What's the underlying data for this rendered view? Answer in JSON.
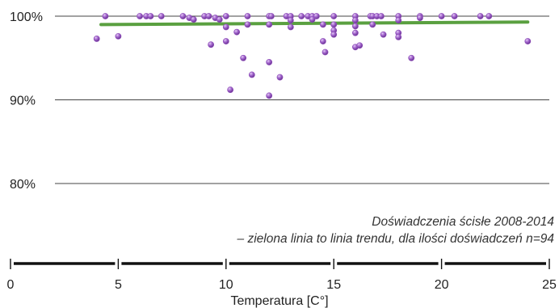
{
  "chart_data": {
    "type": "scatter",
    "xlabel": "Temperatura [C°]",
    "ylabel": "",
    "xlim": [
      0,
      25
    ],
    "ylim": [
      78,
      101.5
    ],
    "x_ticks": [
      0,
      5,
      10,
      15,
      20,
      25
    ],
    "y_ticks": [
      {
        "value": 100,
        "label": "100%"
      },
      {
        "value": 90,
        "label": "90%"
      },
      {
        "value": 80,
        "label": "80%"
      }
    ],
    "grid": "horizontal",
    "annotations": [
      "Doświadczenia ścisłe 2008-2014",
      "– zielona linia to linia trendu, dla ilości doświadczeń n=94"
    ],
    "series": [
      {
        "type": "scatter",
        "color": "#8e4fb8",
        "points": [
          {
            "x": 4.0,
            "y": 97.3
          },
          {
            "x": 4.4,
            "y": 100
          },
          {
            "x": 5.0,
            "y": 97.6
          },
          {
            "x": 6.0,
            "y": 100
          },
          {
            "x": 6.3,
            "y": 100
          },
          {
            "x": 6.5,
            "y": 100
          },
          {
            "x": 7.0,
            "y": 100
          },
          {
            "x": 8.0,
            "y": 100
          },
          {
            "x": 8.3,
            "y": 99.8
          },
          {
            "x": 8.5,
            "y": 99.6
          },
          {
            "x": 9.0,
            "y": 100
          },
          {
            "x": 9.2,
            "y": 100
          },
          {
            "x": 9.3,
            "y": 96.6
          },
          {
            "x": 9.5,
            "y": 99.8
          },
          {
            "x": 9.7,
            "y": 99.6
          },
          {
            "x": 10.0,
            "y": 100
          },
          {
            "x": 10.0,
            "y": 98.7
          },
          {
            "x": 10.0,
            "y": 97.0
          },
          {
            "x": 10.2,
            "y": 91.2
          },
          {
            "x": 10.5,
            "y": 98.1
          },
          {
            "x": 10.8,
            "y": 95.0
          },
          {
            "x": 11.0,
            "y": 100
          },
          {
            "x": 11.0,
            "y": 99.0
          },
          {
            "x": 11.2,
            "y": 93.0
          },
          {
            "x": 12.0,
            "y": 100
          },
          {
            "x": 12.0,
            "y": 99.0
          },
          {
            "x": 12.0,
            "y": 94.5
          },
          {
            "x": 12.0,
            "y": 90.5
          },
          {
            "x": 12.1,
            "y": 100
          },
          {
            "x": 12.5,
            "y": 92.7
          },
          {
            "x": 12.8,
            "y": 100
          },
          {
            "x": 13.0,
            "y": 100
          },
          {
            "x": 13.0,
            "y": 99.5
          },
          {
            "x": 13.0,
            "y": 98.7
          },
          {
            "x": 13.5,
            "y": 100
          },
          {
            "x": 13.8,
            "y": 100
          },
          {
            "x": 14.0,
            "y": 100
          },
          {
            "x": 14.0,
            "y": 99.6
          },
          {
            "x": 14.2,
            "y": 100
          },
          {
            "x": 14.5,
            "y": 99.0
          },
          {
            "x": 14.5,
            "y": 97.0
          },
          {
            "x": 14.6,
            "y": 95.7
          },
          {
            "x": 15.0,
            "y": 100
          },
          {
            "x": 15.0,
            "y": 99.0
          },
          {
            "x": 15.0,
            "y": 98.3
          },
          {
            "x": 15.0,
            "y": 97.8
          },
          {
            "x": 16.0,
            "y": 100
          },
          {
            "x": 16.0,
            "y": 99.5
          },
          {
            "x": 16.0,
            "y": 98.8
          },
          {
            "x": 16.0,
            "y": 98.0
          },
          {
            "x": 16.0,
            "y": 96.3
          },
          {
            "x": 16.2,
            "y": 96.5
          },
          {
            "x": 16.7,
            "y": 100
          },
          {
            "x": 16.8,
            "y": 100
          },
          {
            "x": 16.8,
            "y": 99.0
          },
          {
            "x": 17.0,
            "y": 100
          },
          {
            "x": 17.2,
            "y": 100
          },
          {
            "x": 17.3,
            "y": 97.8
          },
          {
            "x": 18.0,
            "y": 100
          },
          {
            "x": 18.0,
            "y": 99.5
          },
          {
            "x": 18.0,
            "y": 98.0
          },
          {
            "x": 18.0,
            "y": 97.5
          },
          {
            "x": 18.6,
            "y": 95.0
          },
          {
            "x": 19.0,
            "y": 100
          },
          {
            "x": 19.0,
            "y": 99.8
          },
          {
            "x": 20.0,
            "y": 100
          },
          {
            "x": 20.6,
            "y": 100
          },
          {
            "x": 21.8,
            "y": 100
          },
          {
            "x": 22.2,
            "y": 100
          },
          {
            "x": 24.0,
            "y": 97.0
          }
        ]
      },
      {
        "type": "line",
        "color": "#5aa040",
        "x": [
          4.2,
          24.0
        ],
        "y": [
          99.0,
          99.3
        ]
      }
    ]
  }
}
